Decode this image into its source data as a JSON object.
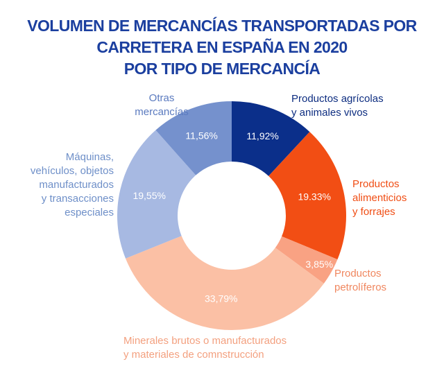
{
  "chart_data": {
    "type": "donut",
    "title": "VOLUMEN DE MERCANCÍAS TRANSPORTADAS POR\nCARRETERA EN ESPAÑA EN 2020\nPOR TIPO DE MERCANCÍA",
    "categories": [
      "Productos agrícolas\ny animales vivos",
      "Productos\nalimenticios\ny forrajes",
      "Productos\npetrolíferos",
      "Minerales brutos o manufacturados\ny materiales de comnstrucción",
      "Máquinas,\nvehículos, objetos\nmanufacturados\ny transacciones\nespeciales",
      "Otras\nmercancías"
    ],
    "values": [
      11.92,
      19.33,
      3.85,
      33.79,
      19.55,
      11.56
    ],
    "value_labels": [
      "11,92%",
      "19.33%",
      "3,85%",
      "33,79%",
      "19,55%",
      "11,56%"
    ],
    "colors": [
      "#0b2f8a",
      "#f24e14",
      "#f9a283",
      "#fbc0a5",
      "#a7b9e2",
      "#7591cd"
    ]
  }
}
